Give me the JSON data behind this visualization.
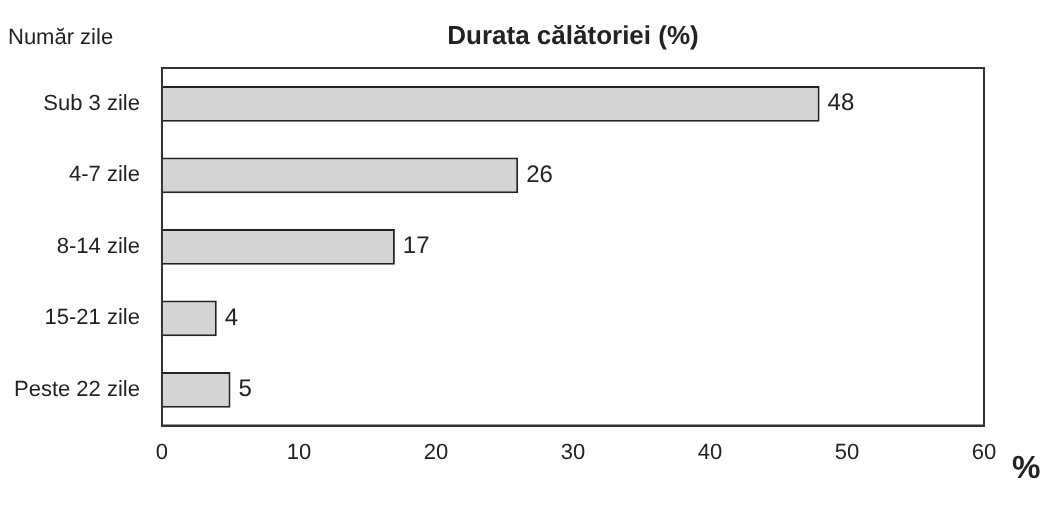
{
  "chart_data": {
    "type": "bar",
    "orientation": "horizontal",
    "title": "Durata călătoriei (%)",
    "ylabel": "Număr zile",
    "xlabel": "%",
    "categories": [
      "Sub 3 zile",
      "4-7 zile",
      "8-14 zile",
      "15-21 zile",
      "Peste 22 zile"
    ],
    "values": [
      48,
      26,
      17,
      4,
      5
    ],
    "color": "#d4d4d4",
    "xlim": [
      0,
      60
    ],
    "xticks": [
      0,
      10,
      20,
      30,
      40,
      50,
      60
    ],
    "grid": false,
    "legend": false,
    "data_labels": true
  }
}
